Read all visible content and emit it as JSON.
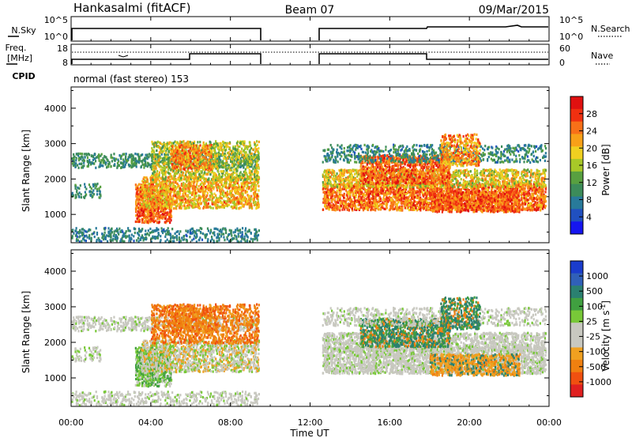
{
  "header": {
    "station": "Hankasalmi (fitACF)",
    "beam": "Beam 07",
    "date": "09/Mar/2015"
  },
  "status_panels": {
    "nsky_label": "N.Sky",
    "nsky_ticks": [
      "10^5",
      "10^0"
    ],
    "nsearch_label": "N.Search",
    "nsearch_ticks": [
      "10^5",
      "10^0"
    ],
    "freq_label": "Freq.",
    "freq_unit": "[MHz]",
    "freq_ticks": [
      "18",
      "8"
    ],
    "nave_label": "Nave",
    "nave_ticks": [
      "60",
      "0"
    ],
    "cpid_label": "CPID",
    "cpid_value": "normal (fast stereo) 153"
  },
  "chart_data": [
    {
      "type": "heatmap",
      "name": "power",
      "ylabel": "Slant Range [km]",
      "ylim": [
        200,
        4600
      ],
      "yticks": [
        "1000",
        "2000",
        "3000",
        "4000"
      ],
      "xlim_hours": [
        0,
        24
      ],
      "xticks": [
        "00:00",
        "04:00",
        "08:00",
        "12:00",
        "16:00",
        "20:00",
        "00:00"
      ],
      "colorbar": {
        "label": "Power [dB]",
        "ticks": [
          "4",
          "8",
          "12",
          "16",
          "20",
          "24",
          "28"
        ],
        "colors": [
          "#1515f0",
          "#2050c0",
          "#287a9a",
          "#3c8c5a",
          "#58a040",
          "#a8c828",
          "#f0d020",
          "#f8a018",
          "#f87018",
          "#f03010",
          "#e01010"
        ]
      },
      "data_gap_hours": [
        9.5,
        12.5
      ]
    },
    {
      "type": "heatmap",
      "name": "velocity",
      "xlabel": "Time UT",
      "ylabel": "Slant Range [km]",
      "ylim": [
        200,
        4600
      ],
      "yticks": [
        "1000",
        "2000",
        "3000",
        "4000"
      ],
      "xlim_hours": [
        0,
        24
      ],
      "xticks": [
        "00:00",
        "04:00",
        "08:00",
        "12:00",
        "16:00",
        "20:00",
        "00:00"
      ],
      "colorbar": {
        "label": "Velocity [m s",
        "label_sup": "-1",
        "label_close": "]",
        "ticks": [
          "1000",
          "500",
          "100",
          "25",
          "-25",
          "-100",
          "-500",
          "-1000"
        ],
        "colors": [
          "#1a3ccc",
          "#3060b8",
          "#2a8070",
          "#40a040",
          "#78c838",
          "#c8c8c0",
          "#c8c8c0",
          "#f0a020",
          "#f08010",
          "#f05010",
          "#e02020"
        ]
      },
      "data_gap_hours": [
        9.5,
        12.5
      ]
    }
  ]
}
